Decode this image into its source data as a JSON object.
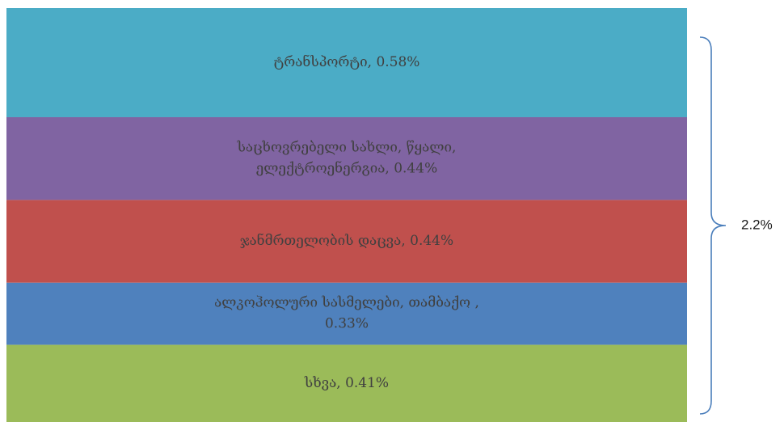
{
  "chart_data": {
    "type": "bar",
    "categories": [
      "ტრანსპორტი",
      "საცხოვრებელი სახლი, წყალი, ელექტროენერგია",
      "ჯანმრთელობის დაცვა",
      "ალკოჰოლური სასმელები, თამბაქო",
      "სხვა"
    ],
    "values": [
      0.58,
      0.44,
      0.44,
      0.33,
      0.41
    ],
    "unit": "%",
    "labels": [
      [
        "ტრანსპორტი, 0.58%"
      ],
      [
        "საცხოვრებელი სახლი, წყალი,",
        "ელექტროენერგია, 0.44%"
      ],
      [
        "ჯანმრთელობის დაცვა, 0.44%"
      ],
      [
        "ალკოჰოლური სასმელები, თამბაქო ,",
        "0.33%"
      ],
      [
        "სხვა, 0.41%"
      ]
    ],
    "colors": [
      "#4bacc6",
      "#8064a2",
      "#c0504d",
      "#4f81bd",
      "#9bbb59"
    ],
    "total_label": "2.2%",
    "stacked": true,
    "grid": false,
    "legend": "none"
  }
}
